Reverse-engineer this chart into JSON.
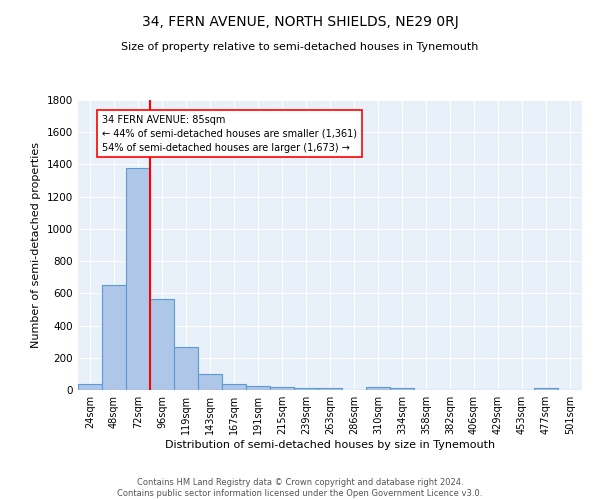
{
  "title_line1": "34, FERN AVENUE, NORTH SHIELDS, NE29 0RJ",
  "title_line2": "Size of property relative to semi-detached houses in Tynemouth",
  "xlabel": "Distribution of semi-detached houses by size in Tynemouth",
  "ylabel": "Number of semi-detached properties",
  "categories": [
    "24sqm",
    "48sqm",
    "72sqm",
    "96sqm",
    "119sqm",
    "143sqm",
    "167sqm",
    "191sqm",
    "215sqm",
    "239sqm",
    "263sqm",
    "286sqm",
    "310sqm",
    "334sqm",
    "358sqm",
    "382sqm",
    "406sqm",
    "429sqm",
    "453sqm",
    "477sqm",
    "501sqm"
  ],
  "values": [
    35,
    650,
    1375,
    565,
    270,
    100,
    35,
    25,
    18,
    12,
    10,
    0,
    18,
    12,
    0,
    0,
    0,
    0,
    0,
    12,
    0
  ],
  "bar_color": "#aec6e8",
  "bar_edge_color": "#5b9bd5",
  "red_line_x": 2.5,
  "annotation_text_line1": "34 FERN AVENUE: 85sqm",
  "annotation_text_line2": "← 44% of semi-detached houses are smaller (1,361)",
  "annotation_text_line3": "54% of semi-detached houses are larger (1,673) →",
  "ylim": [
    0,
    1800
  ],
  "yticks": [
    0,
    200,
    400,
    600,
    800,
    1000,
    1200,
    1400,
    1600,
    1800
  ],
  "background_color": "#e8f0fa",
  "grid_color": "#ffffff",
  "footer_line1": "Contains HM Land Registry data © Crown copyright and database right 2024.",
  "footer_line2": "Contains public sector information licensed under the Open Government Licence v3.0."
}
